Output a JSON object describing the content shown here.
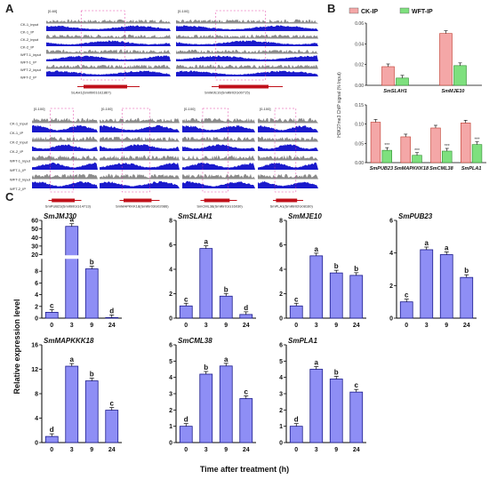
{
  "panels": {
    "a": "A",
    "b": "B",
    "c": "C"
  },
  "track_labels": [
    "CK-1_input",
    "CK-1_IP",
    "CK-2_input",
    "CK-2_IP",
    "WFT-1_input",
    "WFT-1_IP",
    "WFT-2_input",
    "WFT-2_IP"
  ],
  "track_labels_short": [
    "CK-1_input",
    "CK-1_IP",
    "CK-2_input",
    "CK-2_IP",
    "WFT-1_input",
    "WFT-1_IP",
    "WFT-2_input",
    "WFT-2_IP"
  ],
  "browser_top": [
    {
      "range": "[0-60]",
      "gene": "SLAH1(Smiltir01G11867)"
    },
    {
      "range": "[0-100]",
      "gene": "SmMJE10(Smiltir02G00715)"
    }
  ],
  "browser_bottom": [
    {
      "range": "[0-100]",
      "gene": "SmPUB23(Smiltir01G14713)"
    },
    {
      "range": "[0-100]",
      "gene": "SmMAPKKK18(Smiltir03G02086)"
    },
    {
      "range": "[0-100]",
      "gene": "SmCML38(Smiltir01G16030)"
    },
    {
      "range": "[0-100]",
      "gene": "SmPLA1(Smiltir02G08160)"
    }
  ],
  "colors": {
    "ck": "#f4a7a7",
    "wft": "#7ee07e",
    "bar": "#8e8ef5",
    "track_gray": "#8c8c8c",
    "track_blue": "#1a1acc",
    "gene": "#c0101a"
  },
  "chart_data": [
    {
      "type": "bar",
      "panel": "B",
      "ylabel": "H3K27me3 ChIP signal (% Input)",
      "legend": [
        "CK-IP",
        "WFT-IP"
      ],
      "charts": [
        {
          "categories": [
            "SmSLAH1",
            "SmMJE10"
          ],
          "ylim": [
            0,
            0.06
          ],
          "yticks": [
            "0.00",
            "0.02",
            "0.04",
            "0.06"
          ],
          "series": [
            {
              "name": "CK-IP",
              "values": [
                0.018,
                0.05
              ]
            },
            {
              "name": "WFT-IP",
              "values": [
                0.007,
                0.019
              ]
            }
          ]
        },
        {
          "categories": [
            "SmPUB23",
            "SmMAPKKK18",
            "SmCML38",
            "SmPLA1"
          ],
          "ylim": [
            0,
            0.15
          ],
          "yticks": [
            "0.00",
            "0.05",
            "0.10",
            "0.15"
          ],
          "series": [
            {
              "name": "CK-IP",
              "values": [
                0.105,
                0.067,
                0.09,
                0.103
              ]
            },
            {
              "name": "WFT-IP",
              "values": [
                0.032,
                0.019,
                0.03,
                0.047
              ]
            }
          ],
          "annotations": [
            "***",
            "***",
            "***",
            "***"
          ]
        }
      ]
    },
    {
      "type": "bar",
      "panel": "C",
      "ylabel": "Relative expression level",
      "xlabel": "Time after treatment (h)",
      "categories": [
        "0",
        "3",
        "9",
        "24"
      ],
      "charts": [
        {
          "title": "SmJMJ30",
          "values": [
            1,
            53,
            8.4,
            0.1
          ],
          "letters": [
            "c",
            "a",
            "b",
            "d"
          ],
          "break": [
            10,
            20
          ],
          "yticks": [
            "0",
            "2",
            "4",
            "6",
            "8",
            "20",
            "30",
            "40",
            "50",
            "60"
          ]
        },
        {
          "title": "SmSLAH1",
          "values": [
            1,
            5.7,
            1.8,
            0.3
          ],
          "letters": [
            "c",
            "a",
            "b",
            "d"
          ],
          "ylim": [
            0,
            8
          ],
          "yticks": [
            "0",
            "2",
            "4",
            "6",
            "8"
          ]
        },
        {
          "title": "SmMJE10",
          "values": [
            1,
            5.1,
            3.7,
            3.5
          ],
          "letters": [
            "c",
            "a",
            "b",
            "b"
          ],
          "ylim": [
            0,
            8
          ],
          "yticks": [
            "0",
            "2",
            "4",
            "6",
            "8"
          ]
        },
        {
          "title": "SmPUB23",
          "values": [
            1,
            4.2,
            3.9,
            2.5
          ],
          "letters": [
            "c",
            "a",
            "a",
            "b"
          ],
          "ylim": [
            0,
            6
          ],
          "yticks": [
            "0",
            "2",
            "4",
            "6"
          ]
        },
        {
          "title": "SmMAPKKK18",
          "values": [
            1,
            12.5,
            10.1,
            5.3
          ],
          "letters": [
            "d",
            "a",
            "b",
            "c"
          ],
          "ylim": [
            0,
            16
          ],
          "yticks": [
            "0",
            "4",
            "8",
            "12",
            "16"
          ]
        },
        {
          "title": "SmCML38",
          "values": [
            1,
            4.2,
            4.7,
            2.7
          ],
          "letters": [
            "d",
            "b",
            "a",
            "c"
          ],
          "ylim": [
            0,
            6
          ],
          "yticks": [
            "0",
            "1",
            "2",
            "3",
            "4",
            "5",
            "6"
          ]
        },
        {
          "title": "SmPLA1",
          "values": [
            1,
            4.5,
            3.9,
            3.1
          ],
          "letters": [
            "d",
            "a",
            "b",
            "c"
          ],
          "ylim": [
            0,
            6
          ],
          "yticks": [
            "0",
            "1",
            "2",
            "3",
            "4",
            "5",
            "6"
          ]
        }
      ]
    }
  ]
}
